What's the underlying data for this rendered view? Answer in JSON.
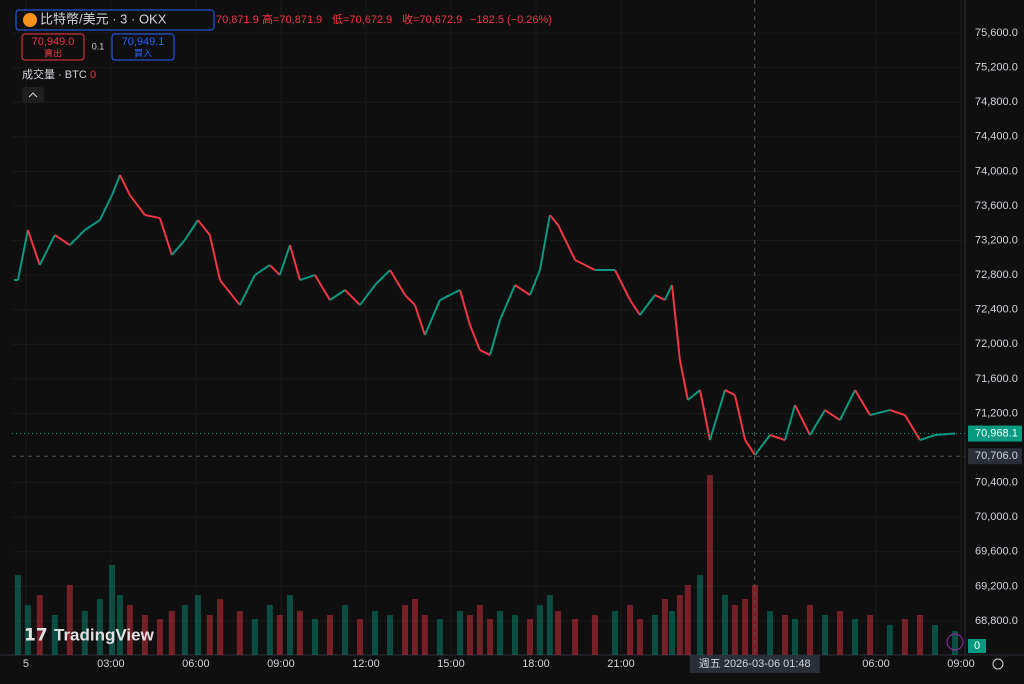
{
  "header": {
    "symbol": "比特幣/美元 · 3 · OKX",
    "ohlc": [
      "70,871.9",
      "高=70,871.9",
      "低=70,672.9",
      "收=70,672.9",
      "−182.5 (−0.26%)"
    ],
    "sell_price": "70,949.0",
    "sell_label": "賣出",
    "spread": "0.1",
    "buy_price": "70,949.1",
    "buy_label": "買入",
    "volume_label": "成交量 · BTC",
    "volume_value": "0",
    "logo": "TradingView",
    "crosshair_time": "週五 2026-03-06   01:48",
    "volume_badge": "0"
  },
  "chart_data": {
    "type": "candlestick",
    "up_color": "#089981",
    "down_color": "#f23645",
    "grid": true,
    "x": [
      -0.28,
      0.07,
      0.49,
      1.02,
      1.55,
      2.08,
      2.61,
      3.04,
      3.32,
      3.67,
      4.2,
      4.73,
      5.15,
      5.61,
      6.07,
      6.49,
      6.85,
      7.55,
      8.08,
      8.61,
      8.96,
      9.32,
      9.67,
      10.2,
      10.73,
      11.26,
      11.79,
      12.32,
      12.85,
      13.38,
      13.73,
      14.08,
      14.61,
      15.32,
      15.67,
      16.02,
      16.38,
      16.73,
      17.26,
      17.79,
      18.14,
      18.49,
      18.78,
      19.38,
      20.08,
      20.79,
      21.32,
      21.67,
      22.2,
      22.55,
      22.8,
      23.08,
      23.36,
      23.79,
      24.14,
      24.67,
      25.02,
      25.38,
      25.73,
      26.26,
      26.79,
      27.14,
      27.67,
      28.2,
      28.73,
      29.26,
      29.79,
      30.49,
      31.02,
      31.55,
      32.08,
      32.79
    ],
    "close": [
      72743,
      73322,
      72917,
      73264,
      73148,
      73322,
      73437,
      73726,
      73958,
      73726,
      73495,
      73460,
      73033,
      73206,
      73437,
      73264,
      72743,
      72454,
      72801,
      72917,
      72801,
      73148,
      72743,
      72801,
      72512,
      72628,
      72454,
      72686,
      72859,
      72570,
      72454,
      72107,
      72512,
      72628,
      72223,
      71934,
      71876,
      72281,
      72686,
      72570,
      72859,
      73495,
      73380,
      72975,
      72859,
      72859,
      72512,
      72339,
      72570,
      72512,
      72686,
      71818,
      71356,
      71471,
      70893,
      71471,
      71413,
      70893,
      70720,
      70951,
      70893,
      71298,
      70951,
      71240,
      71124,
      71471,
      71182,
      71240,
      71182,
      70893,
      70951,
      70968.1
    ],
    "volume": [
      40,
      25,
      30,
      20,
      35,
      22,
      28,
      45,
      30,
      25,
      20,
      18,
      22,
      25,
      30,
      20,
      28,
      22,
      18,
      25,
      20,
      30,
      22,
      18,
      20,
      25,
      18,
      22,
      20,
      25,
      28,
      20,
      18,
      22,
      20,
      25,
      18,
      22,
      20,
      18,
      25,
      30,
      22,
      18,
      20,
      22,
      25,
      18,
      20,
      28,
      22,
      30,
      35,
      40,
      90,
      30,
      25,
      28,
      35,
      22,
      20,
      18,
      25,
      20,
      22,
      18,
      20,
      15,
      18,
      20,
      15,
      12
    ],
    "vlim": [
      0,
      100
    ],
    "xlim": [
      -0.49,
      33.14
    ],
    "ylim": [
      68407,
      75982
    ],
    "xticks": [
      {
        "value": 0,
        "label": "5"
      },
      {
        "value": 3,
        "label": "03:00"
      },
      {
        "value": 6,
        "label": "06:00"
      },
      {
        "value": 9,
        "label": "09:00"
      },
      {
        "value": 12,
        "label": "12:00"
      },
      {
        "value": 15,
        "label": "15:00"
      },
      {
        "value": 18,
        "label": "18:00"
      },
      {
        "value": 21,
        "label": "21:00"
      },
      {
        "value": 30,
        "label": "06:00"
      },
      {
        "value": 33,
        "label": "09:00"
      }
    ],
    "yticks": [
      {
        "value": 68800,
        "label": "68,800.0"
      },
      {
        "value": 69200,
        "label": "69,200.0"
      },
      {
        "value": 69600,
        "label": "69,600.0"
      },
      {
        "value": 70000,
        "label": "70,000.0"
      },
      {
        "value": 70400,
        "label": "70,400.0"
      },
      {
        "value": 71200,
        "label": "71,200.0"
      },
      {
        "value": 71600,
        "label": "71,600.0"
      },
      {
        "value": 72000,
        "label": "72,000.0"
      },
      {
        "value": 72400,
        "label": "72,400.0"
      },
      {
        "value": 72800,
        "label": "72,800.0"
      },
      {
        "value": 73200,
        "label": "73,200.0"
      },
      {
        "value": 73600,
        "label": "73,600.0"
      },
      {
        "value": 74000,
        "label": "74,000.0"
      },
      {
        "value": 74400,
        "label": "74,400.0"
      },
      {
        "value": 74800,
        "label": "74,800.0"
      },
      {
        "value": 75200,
        "label": "75,200.0"
      },
      {
        "value": 75600,
        "label": "75,600.0"
      }
    ],
    "last_price": {
      "value": 70968.1,
      "label": "70,968.1"
    },
    "crosshair": {
      "x": 25.72,
      "price": {
        "value": 70706,
        "label": "70,706.0"
      }
    }
  }
}
